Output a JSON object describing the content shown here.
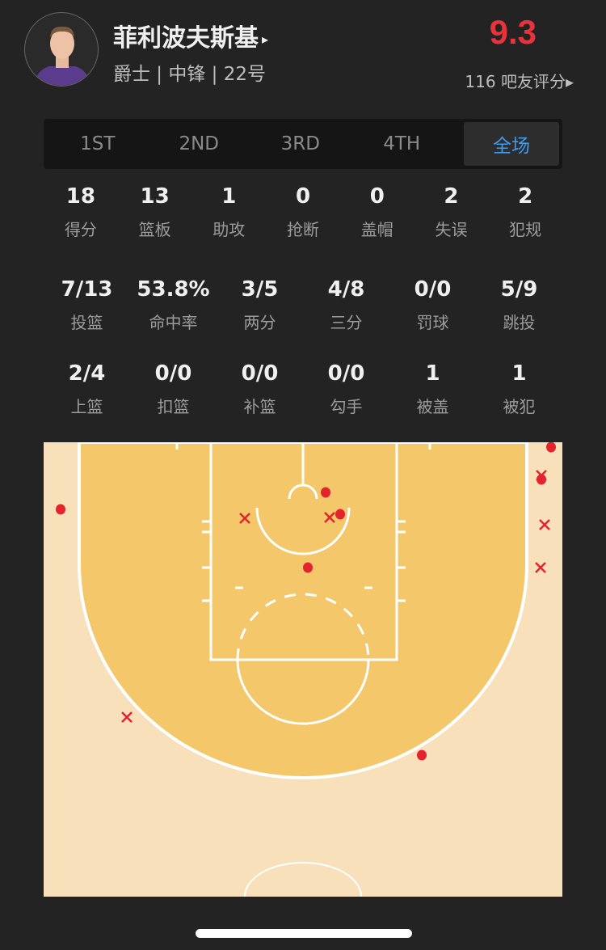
{
  "player": {
    "name": "菲利波夫斯基",
    "info": "爵士 | 中锋 | 22号",
    "rating": "9.3",
    "votes": "116 吧友评分",
    "arrow": "▸"
  },
  "tabs": [
    {
      "label": "1ST"
    },
    {
      "label": "2ND"
    },
    {
      "label": "3RD"
    },
    {
      "label": "4TH"
    },
    {
      "label": "全场",
      "active": true
    }
  ],
  "stats_row1": [
    {
      "v": "18",
      "l": "得分"
    },
    {
      "v": "13",
      "l": "篮板"
    },
    {
      "v": "1",
      "l": "助攻"
    },
    {
      "v": "0",
      "l": "抢断"
    },
    {
      "v": "0",
      "l": "盖帽"
    },
    {
      "v": "2",
      "l": "失误"
    },
    {
      "v": "2",
      "l": "犯规"
    }
  ],
  "stats_row2": [
    {
      "v": "7/13",
      "l": "投篮"
    },
    {
      "v": "53.8%",
      "l": "命中率"
    },
    {
      "v": "3/5",
      "l": "两分"
    },
    {
      "v": "4/8",
      "l": "三分"
    },
    {
      "v": "0/0",
      "l": "罚球"
    },
    {
      "v": "5/9",
      "l": "跳投"
    }
  ],
  "stats_row3": [
    {
      "v": "2/4",
      "l": "上篮"
    },
    {
      "v": "0/0",
      "l": "扣篮"
    },
    {
      "v": "0/0",
      "l": "补篮"
    },
    {
      "v": "0/0",
      "l": "勾手"
    },
    {
      "v": "1",
      "l": "被盖"
    },
    {
      "v": "1",
      "l": "被犯"
    }
  ],
  "shot_chart": {
    "made": 7,
    "missed": 6,
    "colors": {
      "shot": "#e3242f",
      "paint": "#f5c76b",
      "court": "#f8e0bb",
      "lines": "#ffffff"
    }
  }
}
